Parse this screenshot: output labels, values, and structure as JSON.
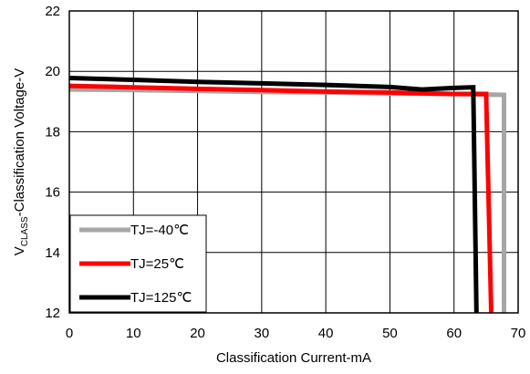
{
  "chart_data": {
    "type": "line",
    "xlabel": "Classification Current-mA",
    "ylabel": {
      "prefix": "V",
      "subscript": "CLASS",
      "suffix": "-Classification Voltage-V"
    },
    "xlim": [
      0,
      70
    ],
    "ylim": [
      12,
      22
    ],
    "xticks": [
      0,
      10,
      20,
      30,
      40,
      50,
      60,
      70
    ],
    "yticks": [
      12,
      14,
      16,
      18,
      20,
      22
    ],
    "grid": true,
    "legend_position": "bottom-left",
    "series": [
      {
        "name": "TJ=-40℃",
        "color": "#a6a6a6",
        "points": [
          [
            0,
            19.4
          ],
          [
            10,
            19.38
          ],
          [
            20,
            19.35
          ],
          [
            30,
            19.32
          ],
          [
            40,
            19.3
          ],
          [
            50,
            19.27
          ],
          [
            60,
            19.25
          ],
          [
            67.8,
            19.22
          ],
          [
            67.8,
            12
          ]
        ]
      },
      {
        "name": "TJ=25℃",
        "color": "#ff0000",
        "points": [
          [
            0,
            19.52
          ],
          [
            10,
            19.47
          ],
          [
            20,
            19.42
          ],
          [
            30,
            19.38
          ],
          [
            40,
            19.33
          ],
          [
            50,
            19.3
          ],
          [
            55,
            19.27
          ],
          [
            60,
            19.25
          ],
          [
            65,
            19.25
          ],
          [
            65.8,
            12
          ]
        ]
      },
      {
        "name": "TJ=125℃",
        "color": "#000000",
        "points": [
          [
            0,
            19.78
          ],
          [
            10,
            19.72
          ],
          [
            20,
            19.65
          ],
          [
            30,
            19.6
          ],
          [
            40,
            19.55
          ],
          [
            50,
            19.48
          ],
          [
            55,
            19.4
          ],
          [
            60,
            19.45
          ],
          [
            63,
            19.47
          ],
          [
            63.5,
            12
          ]
        ]
      }
    ]
  }
}
